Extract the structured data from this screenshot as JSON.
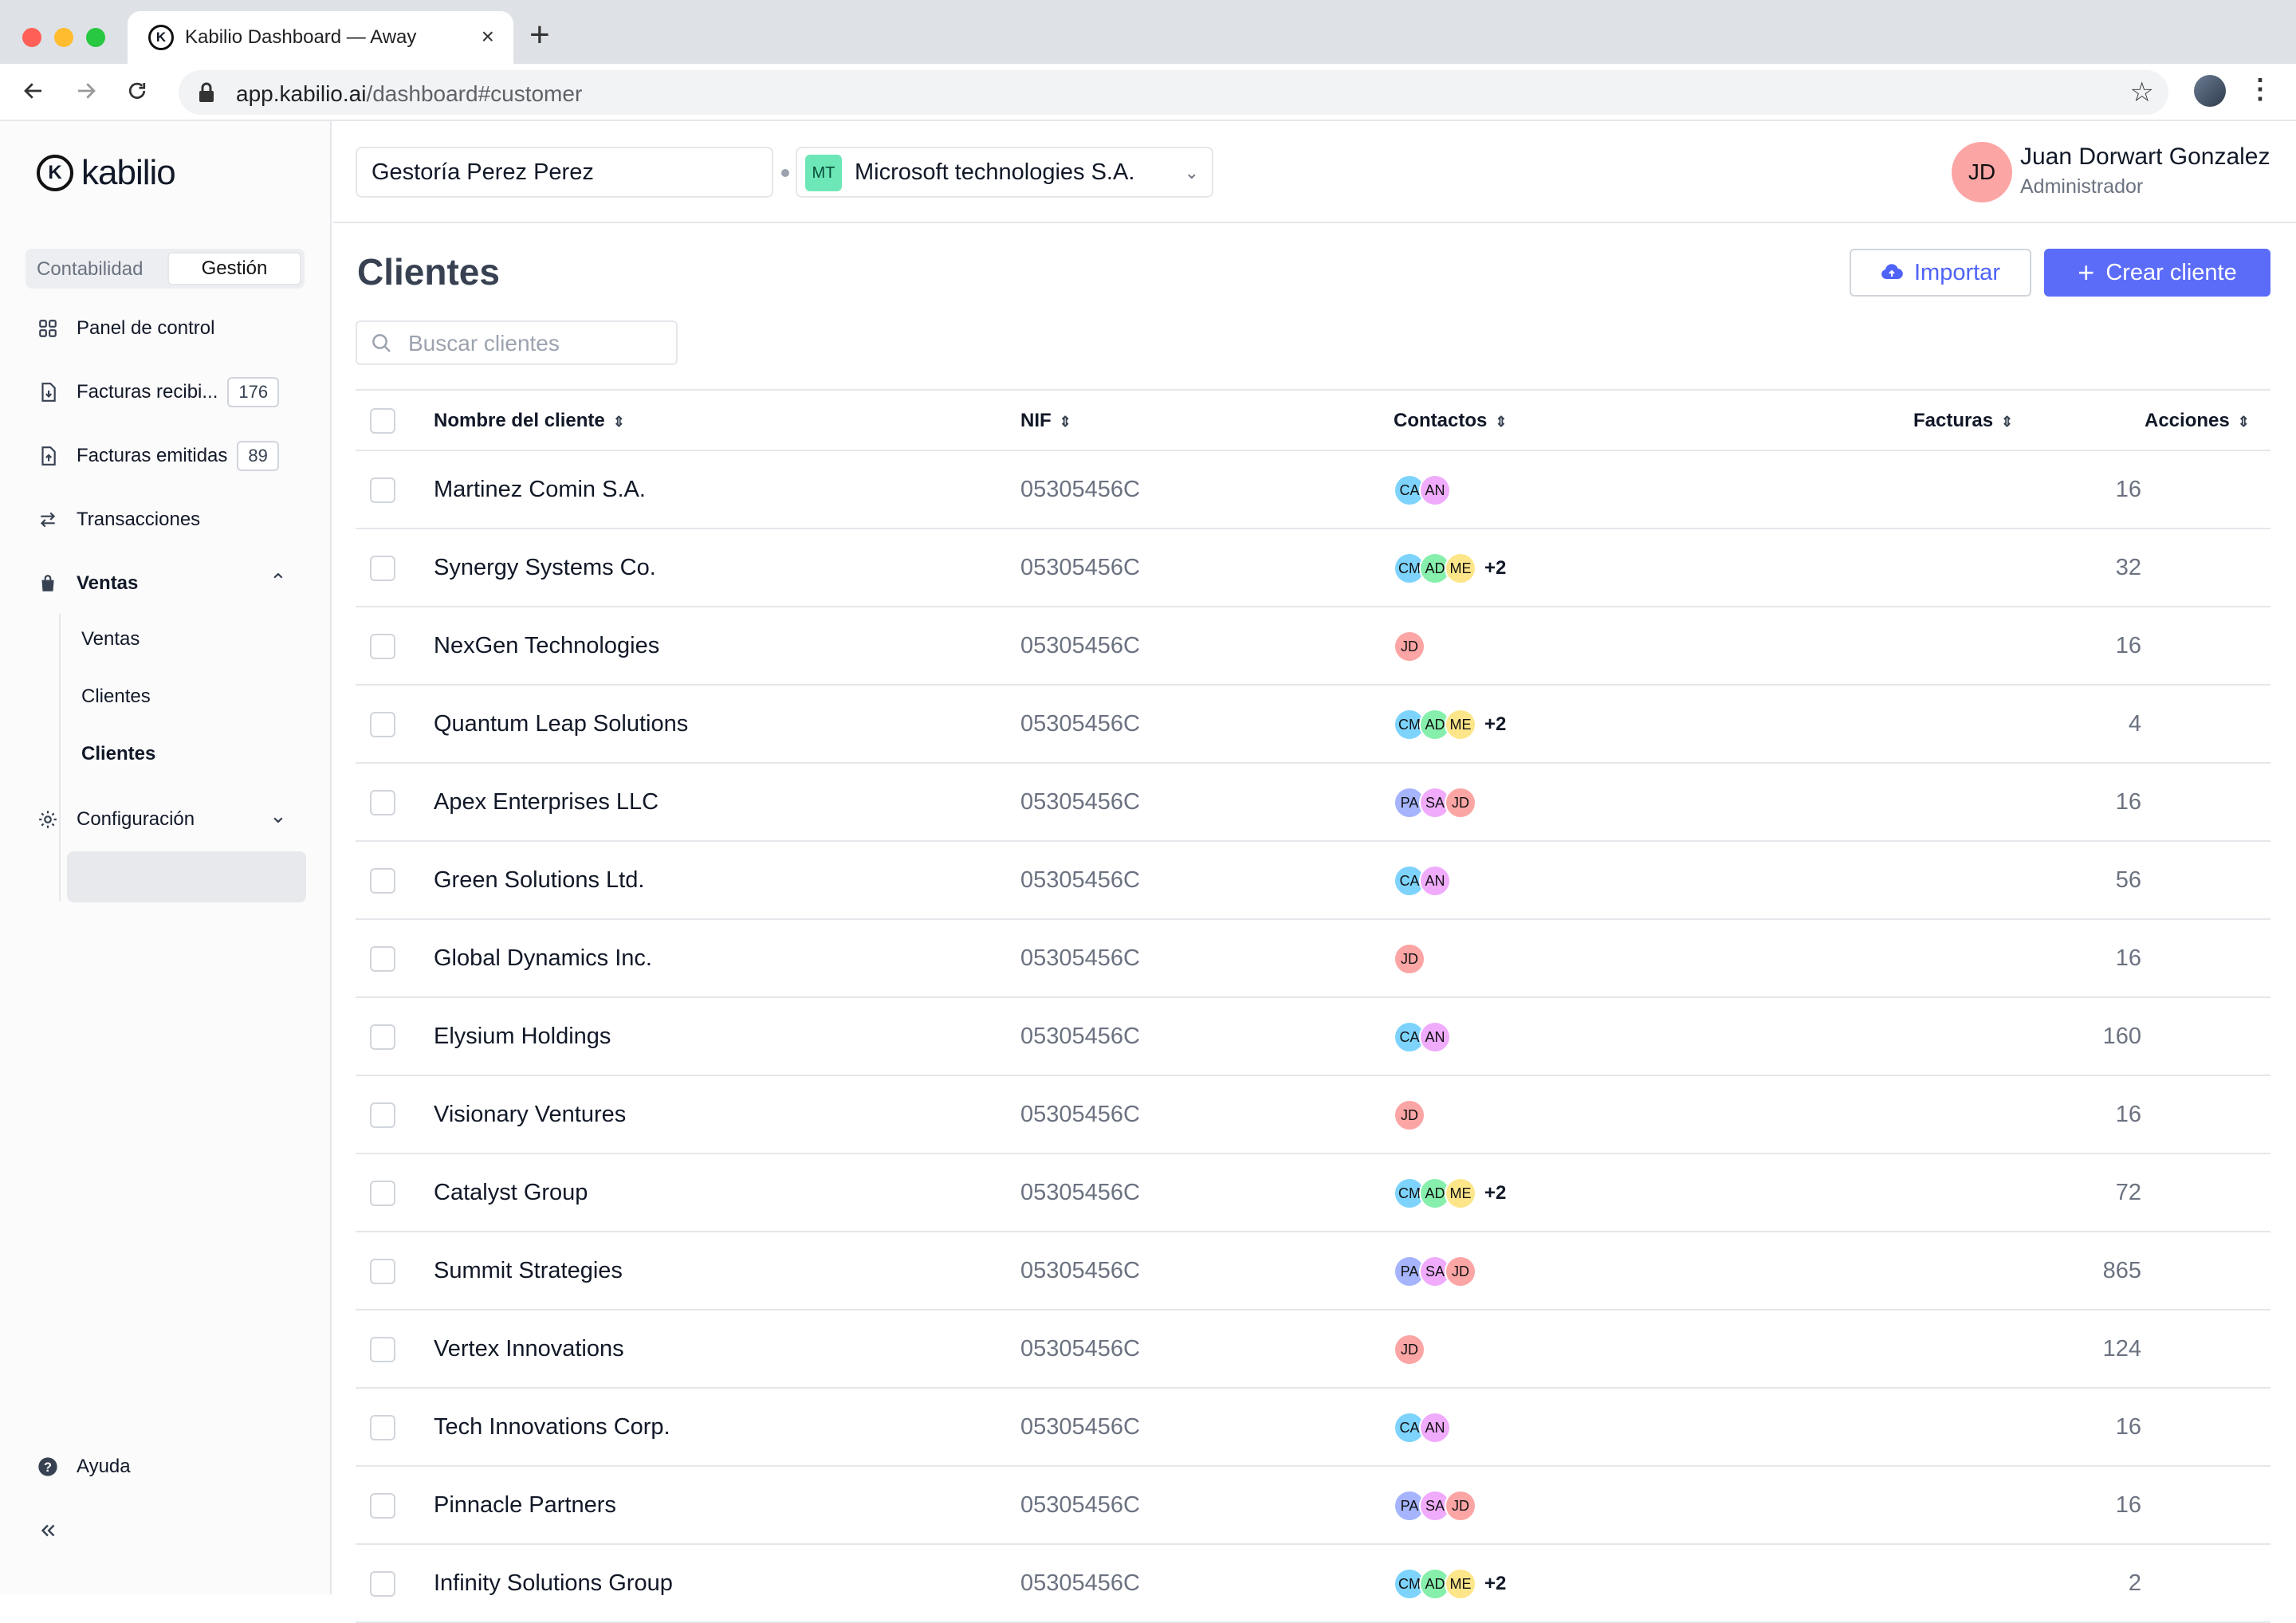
{
  "browser": {
    "tab_title": "Kabilio Dashboard — Away",
    "url_host": "app.kabilio.ai",
    "url_path": "/dashboard#customer",
    "colors": {
      "close": "#ff5f57",
      "minimize": "#febc2e",
      "maximize": "#28c840"
    }
  },
  "sidebar": {
    "logo_text": "kabilio",
    "segment": {
      "left": "Contabilidad",
      "right": "Gestión"
    },
    "items": [
      {
        "label": "Panel de control",
        "icon": "grid-icon"
      },
      {
        "label": "Facturas recibi...",
        "count": "176",
        "icon": "file-download-icon"
      },
      {
        "label": "Facturas emitidas",
        "count": "89",
        "icon": "file-upload-icon"
      },
      {
        "label": "Transacciones",
        "icon": "arrows-exchange-icon"
      },
      {
        "label": "Ventas",
        "icon": "shopping-bag-icon"
      }
    ],
    "sub_items": [
      "Ventas",
      "Clientes",
      "Clientes"
    ],
    "config_label": "Configuración",
    "help_label": "Ayuda"
  },
  "header": {
    "company": "Gestoría Perez Perez",
    "client_badge": "MT",
    "client": "Microsoft technologies S.A.",
    "user_initials": "JD",
    "user_name": "Juan Dorwart Gonzalez",
    "user_role": "Administrador"
  },
  "main": {
    "title": "Clientes",
    "import_label": "Importar",
    "create_label": "Crear cliente",
    "search_placeholder": "Buscar clientes",
    "accent": "#5b6cf9"
  },
  "table": {
    "columns": [
      "Nombre del cliente",
      "NIF",
      "Contactos",
      "Facturas",
      "Acciones"
    ],
    "avatar_colors": {
      "CA": "#7dd3fc",
      "AN": "#f0abfc",
      "CM": "#7dd3fc",
      "AD": "#86efac",
      "ME": "#fde68a",
      "JD": "#fca5a5",
      "PA": "#a5b4fc",
      "SA": "#f0abfc"
    },
    "rows": [
      {
        "name": "Martinez Comin S.A.",
        "nif": "05305456C",
        "contacts": [
          "CA",
          "AN"
        ],
        "more": "",
        "facturas": "16"
      },
      {
        "name": "Synergy Systems Co.",
        "nif": "05305456C",
        "contacts": [
          "CM",
          "AD",
          "ME"
        ],
        "more": "+2",
        "facturas": "32"
      },
      {
        "name": "NexGen Technologies",
        "nif": "05305456C",
        "contacts": [
          "JD"
        ],
        "more": "",
        "facturas": "16"
      },
      {
        "name": "Quantum Leap Solutions",
        "nif": "05305456C",
        "contacts": [
          "CM",
          "AD",
          "ME"
        ],
        "more": "+2",
        "facturas": "4"
      },
      {
        "name": "Apex Enterprises LLC",
        "nif": "05305456C",
        "contacts": [
          "PA",
          "SA",
          "JD"
        ],
        "more": "",
        "facturas": "16"
      },
      {
        "name": "Green Solutions Ltd.",
        "nif": "05305456C",
        "contacts": [
          "CA",
          "AN"
        ],
        "more": "",
        "facturas": "56"
      },
      {
        "name": "Global Dynamics Inc.",
        "nif": "05305456C",
        "contacts": [
          "JD"
        ],
        "more": "",
        "facturas": "16"
      },
      {
        "name": "Elysium Holdings",
        "nif": "05305456C",
        "contacts": [
          "CA",
          "AN"
        ],
        "more": "",
        "facturas": "160"
      },
      {
        "name": "Visionary Ventures",
        "nif": "05305456C",
        "contacts": [
          "JD"
        ],
        "more": "",
        "facturas": "16"
      },
      {
        "name": "Catalyst Group",
        "nif": "05305456C",
        "contacts": [
          "CM",
          "AD",
          "ME"
        ],
        "more": "+2",
        "facturas": "72"
      },
      {
        "name": "Summit Strategies",
        "nif": "05305456C",
        "contacts": [
          "PA",
          "SA",
          "JD"
        ],
        "more": "",
        "facturas": "865"
      },
      {
        "name": "Vertex Innovations",
        "nif": "05305456C",
        "contacts": [
          "JD"
        ],
        "more": "",
        "facturas": "124"
      },
      {
        "name": "Tech Innovations Corp.",
        "nif": "05305456C",
        "contacts": [
          "CA",
          "AN"
        ],
        "more": "",
        "facturas": "16"
      },
      {
        "name": "Pinnacle Partners",
        "nif": "05305456C",
        "contacts": [
          "PA",
          "SA",
          "JD"
        ],
        "more": "",
        "facturas": "16"
      },
      {
        "name": "Infinity Solutions Group",
        "nif": "05305456C",
        "contacts": [
          "CM",
          "AD",
          "ME"
        ],
        "more": "+2",
        "facturas": "2"
      }
    ]
  }
}
